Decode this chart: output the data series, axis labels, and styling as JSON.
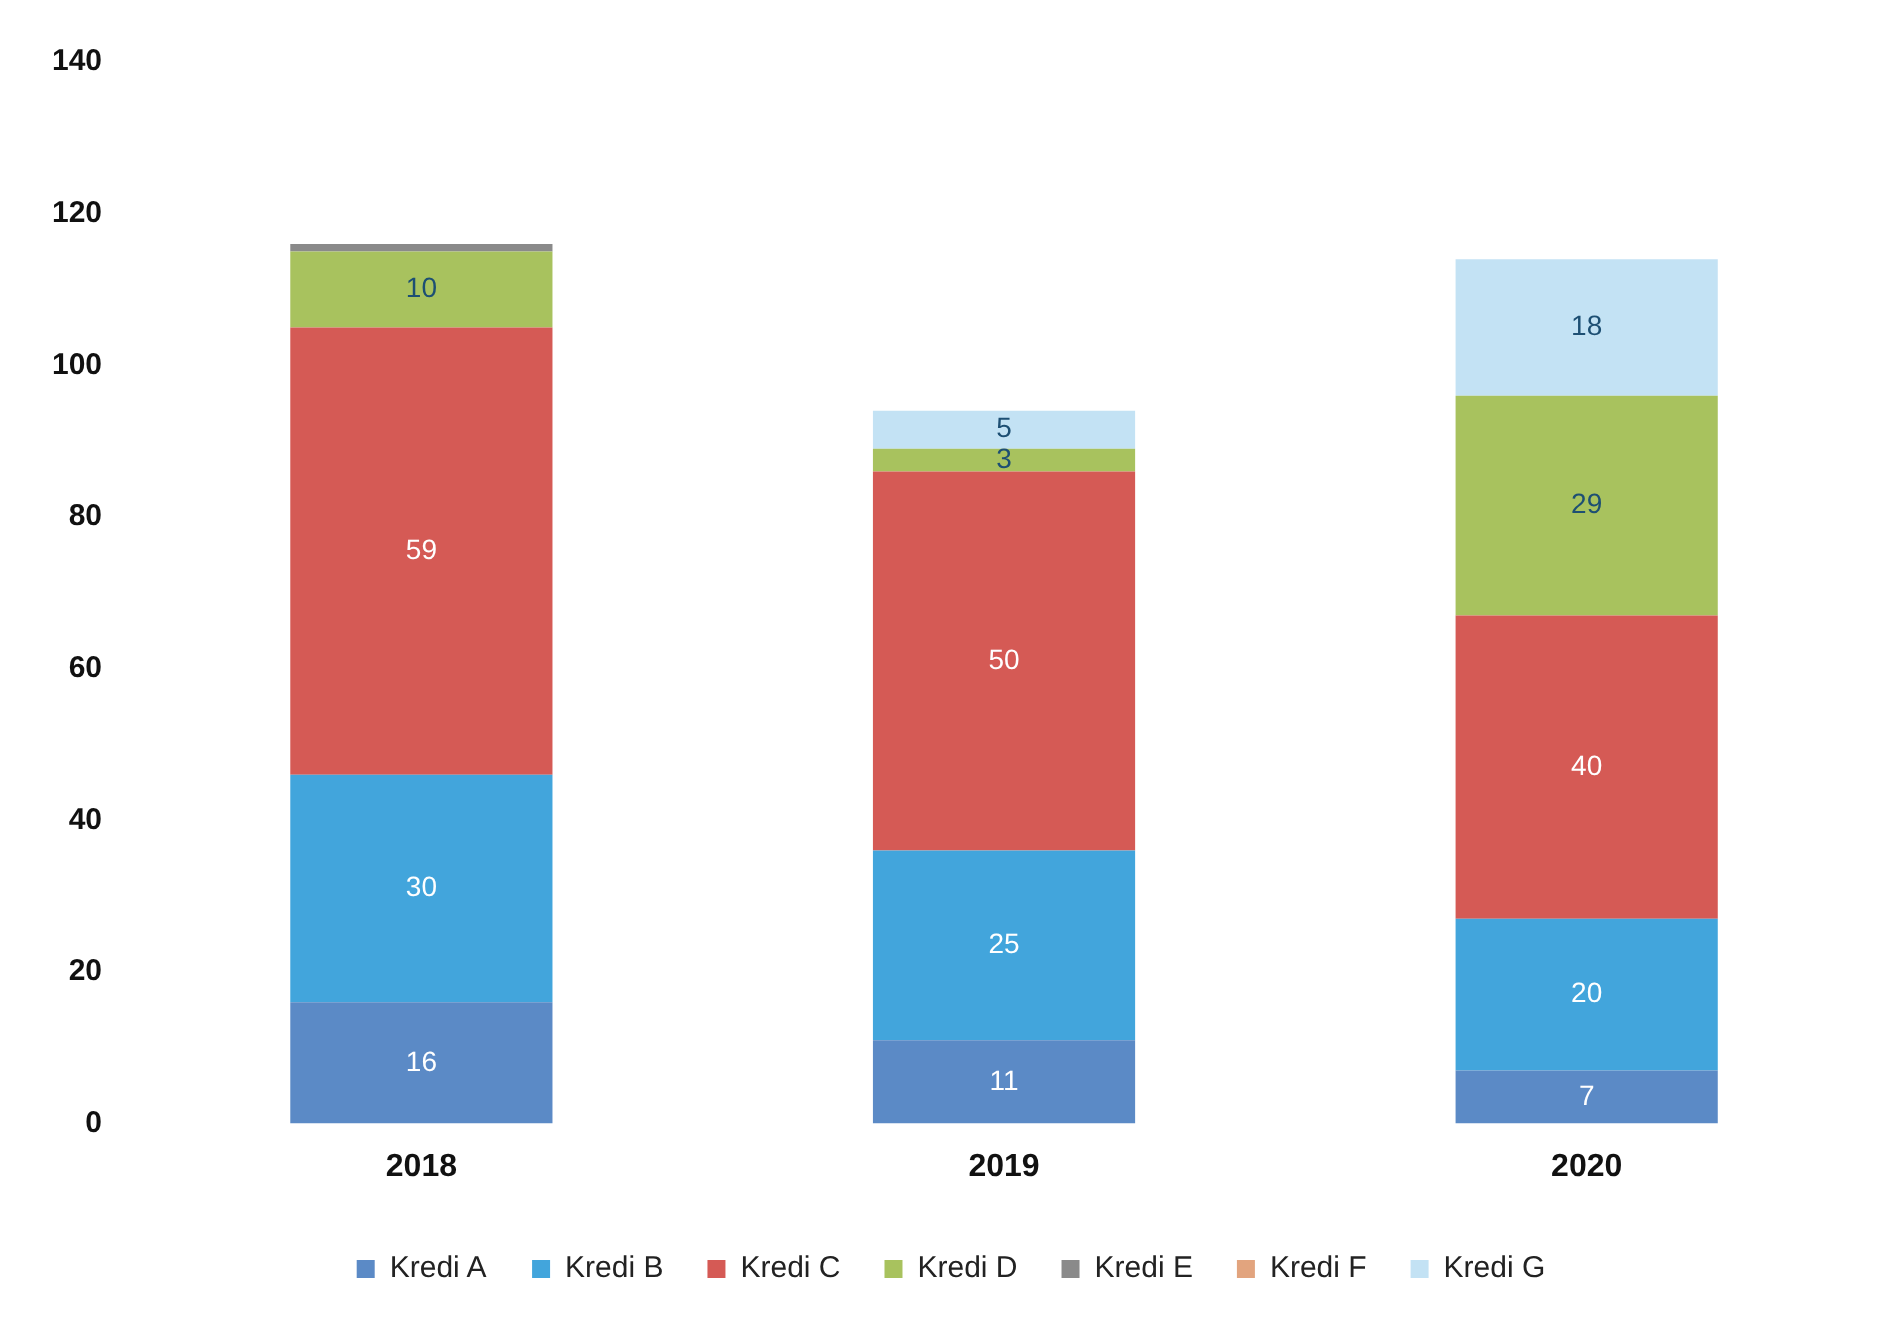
{
  "chart_data": {
    "type": "bar",
    "stacked": true,
    "categories": [
      "2018",
      "2019",
      "2020"
    ],
    "series": [
      {
        "name": "Kredi A",
        "color": "#5b8ac6",
        "values": [
          16,
          11,
          7
        ],
        "value_labels": [
          "16",
          "11",
          "7"
        ]
      },
      {
        "name": "Kredi B",
        "color": "#42a5dc",
        "values": [
          30,
          25,
          20
        ],
        "value_labels": [
          "30",
          "25",
          "20"
        ]
      },
      {
        "name": "Kredi C",
        "color": "#d55a55",
        "values": [
          59,
          50,
          40
        ],
        "value_labels": [
          "59",
          "50",
          "40"
        ]
      },
      {
        "name": "Kredi D",
        "color": "#a8c25e",
        "values": [
          10,
          3,
          29
        ],
        "value_labels": [
          "10",
          "3",
          "29"
        ]
      },
      {
        "name": "Kredi E",
        "color": "#8a8a8a",
        "values": [
          1,
          null,
          null
        ]
      },
      {
        "name": "Kredi F",
        "color": "#e2a47e",
        "values": [
          null,
          null,
          null
        ]
      },
      {
        "name": "Kredi G",
        "color": "#c3e2f4",
        "values": [
          null,
          5,
          18
        ],
        "value_labels": [
          null,
          "5",
          "18"
        ]
      }
    ],
    "ylim": [
      0,
      140
    ],
    "yticks": [
      0,
      20,
      40,
      60,
      80,
      100,
      120,
      140
    ],
    "grid": false,
    "legend": "bottom"
  }
}
